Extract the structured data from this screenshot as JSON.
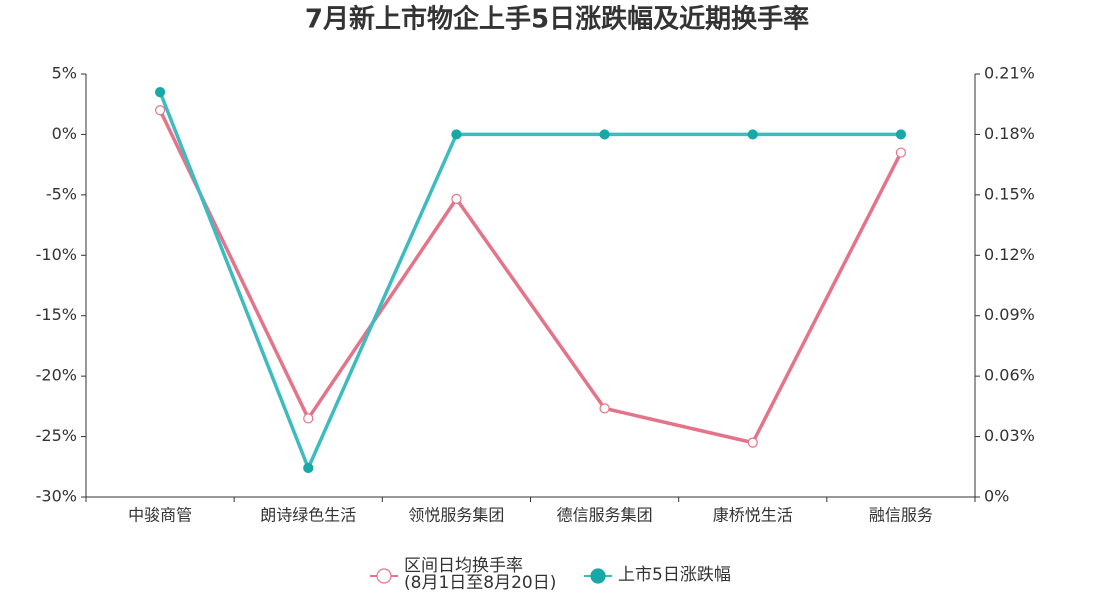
{
  "chart_data": {
    "type": "line",
    "title": "7月新上市物企上手5日涨跌幅及近期换手率",
    "categories": [
      "中骏商管",
      "朗诗绿色生活",
      "领悦服务集团",
      "德信服务集团",
      "康桥悦生活",
      "融信服务"
    ],
    "series": [
      {
        "name": "区间日均换手率\n(8月1日至8月20日)",
        "color": "#e5738a",
        "axis": "y2",
        "values": [
          0.192,
          0.039,
          0.148,
          0.044,
          0.027,
          0.171
        ]
      },
      {
        "name": "上市5日涨跌幅",
        "color": "#3dbcc0",
        "values": [
          3.5,
          -27.6,
          0,
          0,
          0,
          0
        ]
      }
    ],
    "ylim": [
      -30,
      5
    ],
    "yticks": [
      {
        "value": 5,
        "label": "5%"
      },
      {
        "value": 0,
        "label": "0%"
      },
      {
        "value": -5,
        "label": "-5%"
      },
      {
        "value": -10,
        "label": "-10%"
      },
      {
        "value": -15,
        "label": "-15%"
      },
      {
        "value": -20,
        "label": "-20%"
      },
      {
        "value": -25,
        "label": "-25%"
      },
      {
        "value": -30,
        "label": "-30%"
      }
    ],
    "y2lim": [
      0,
      0.21
    ],
    "y2ticks": [
      {
        "value": 0.21,
        "label": "0.21%"
      },
      {
        "value": 0.18,
        "label": "0.18%"
      },
      {
        "value": 0.15,
        "label": "0.15%"
      },
      {
        "value": 0.12,
        "label": "0.12%"
      },
      {
        "value": 0.09,
        "label": "0.09%"
      },
      {
        "value": 0.06,
        "label": "0.06%"
      },
      {
        "value": 0.03,
        "label": "0.03%"
      },
      {
        "value": 0,
        "label": "0%"
      }
    ]
  }
}
